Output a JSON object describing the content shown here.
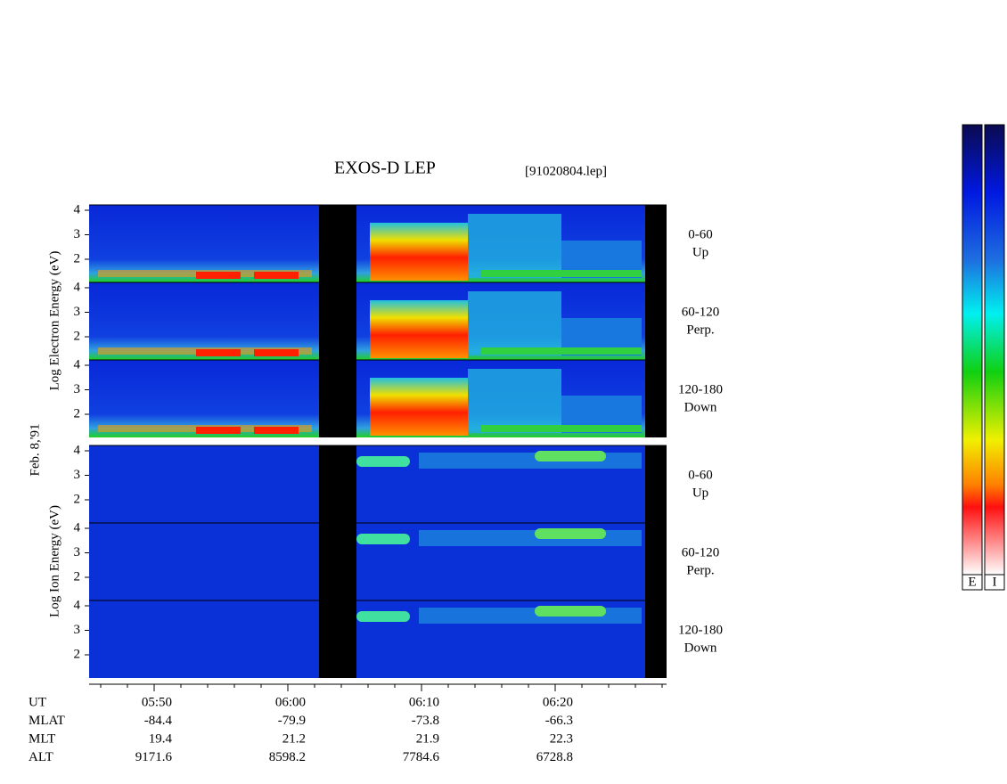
{
  "header": {
    "title": "EXOS-D LEP",
    "file": "[91020804.lep]",
    "date": "Feb. 8,'91"
  },
  "axes": {
    "electron_label": "Log Electron Energy (eV)",
    "ion_label": "Log Ion Energy (eV)",
    "yticks": [
      "4",
      "3",
      "2"
    ]
  },
  "panels": [
    {
      "angle": "0-60",
      "direction": "Up"
    },
    {
      "angle": "60-120",
      "direction": "Perp."
    },
    {
      "angle": "120-180",
      "direction": "Down"
    },
    {
      "angle": "0-60",
      "direction": "Up"
    },
    {
      "angle": "60-120",
      "direction": "Perp."
    },
    {
      "angle": "120-180",
      "direction": "Down"
    }
  ],
  "ephemeris": {
    "rows": [
      {
        "name": "UT",
        "values": [
          "05:50",
          "06:00",
          "06:10",
          "06:20"
        ]
      },
      {
        "name": "MLAT",
        "values": [
          "-84.4",
          "-79.9",
          "-73.8",
          "-66.3"
        ]
      },
      {
        "name": "MLT",
        "values": [
          "19.4",
          "21.2",
          "21.9",
          "22.3"
        ]
      },
      {
        "name": "ALT",
        "values": [
          "9171.6",
          "8598.2",
          "7784.6",
          "6728.8"
        ]
      }
    ]
  },
  "colorbar": {
    "labels": [
      "E",
      "I"
    ]
  }
}
